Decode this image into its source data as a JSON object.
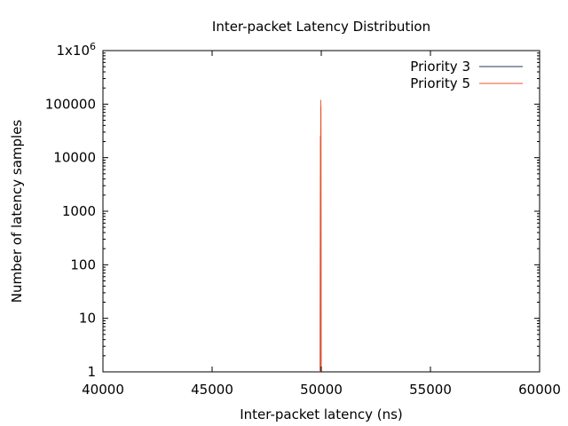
{
  "chart_data": {
    "type": "line",
    "title": "Inter-packet Latency Distribution",
    "xlabel": "Inter-packet latency (ns)",
    "ylabel": "Number of latency samples",
    "xlim": [
      40000,
      60000
    ],
    "ylim": [
      1,
      1000000
    ],
    "y_scale": "log",
    "grid": false,
    "legend_position": "top-right",
    "x_ticks": [
      {
        "value": 40000,
        "label": "40000"
      },
      {
        "value": 45000,
        "label": "45000"
      },
      {
        "value": 50000,
        "label": "50000"
      },
      {
        "value": 55000,
        "label": "55000"
      },
      {
        "value": 60000,
        "label": "60000"
      }
    ],
    "y_ticks": [
      {
        "value": 1,
        "label": "1"
      },
      {
        "value": 10,
        "label": "10"
      },
      {
        "value": 100,
        "label": "100"
      },
      {
        "value": 1000,
        "label": "1000"
      },
      {
        "value": 10000,
        "label": "10000"
      },
      {
        "value": 100000,
        "label": "100000"
      },
      {
        "value": 1000000,
        "label": "1x10",
        "sup": "6"
      }
    ],
    "series": [
      {
        "name": "Priority 3",
        "color": "#1f3a5f",
        "points": [
          [
            49950,
            1
          ],
          [
            49960,
            25000
          ],
          [
            49970,
            1
          ],
          [
            49980,
            90000
          ],
          [
            49990,
            1
          ]
        ]
      },
      {
        "name": "Priority 5",
        "color": "#e8552d",
        "points": [
          [
            49950,
            1
          ],
          [
            49960,
            25000
          ],
          [
            49965,
            1
          ],
          [
            49975,
            120000
          ],
          [
            49980,
            1
          ],
          [
            49985,
            92000
          ],
          [
            49995,
            1
          ]
        ]
      }
    ]
  }
}
